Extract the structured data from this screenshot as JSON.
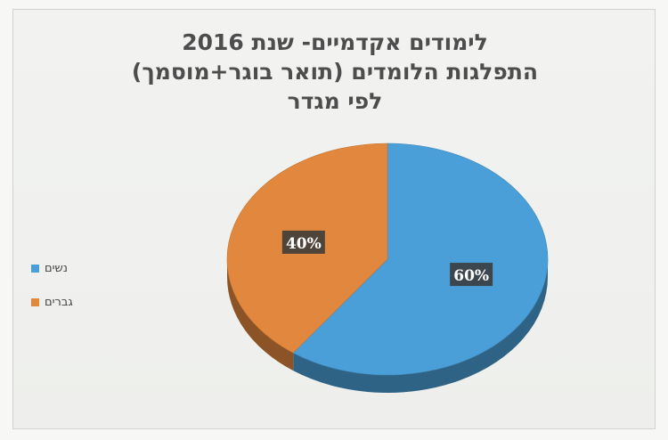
{
  "chart_data": {
    "type": "pie",
    "title_lines": [
      "לימודים אקדמיים- שנת 2016",
      "התפלגות הלומדים (תואר בוגר+מוסמך)",
      "לפי מגדר"
    ],
    "categories": [
      "נשים",
      "גברים"
    ],
    "values": [
      60,
      40
    ],
    "data_labels": [
      "60%",
      "40%"
    ],
    "colors": [
      "#4a9fd8",
      "#e2883e"
    ],
    "legend_position": "left"
  }
}
